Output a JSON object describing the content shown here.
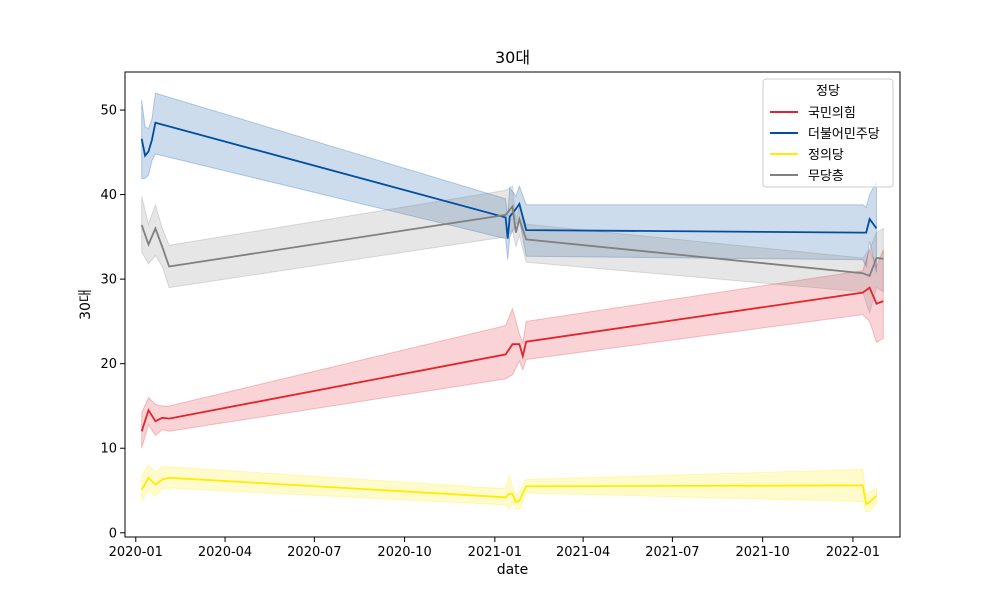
{
  "chart_data": {
    "type": "line",
    "title": "30대",
    "xlabel": "date",
    "ylabel": "30대",
    "x_dates": [
      "2020-01-07",
      "2020-01-14",
      "2020-01-21",
      "2020-01-28",
      "2020-02-04",
      "2021-01-12",
      "2021-01-19",
      "2021-01-26",
      "2021-02-02",
      "2022-01-11",
      "2022-01-18",
      "2022-01-25",
      "2022-02-01"
    ],
    "xlim": [
      "2019-12-21",
      "2022-02-18"
    ],
    "x_ticks": [
      "2020-01",
      "2020-04",
      "2020-07",
      "2020-10",
      "2021-01",
      "2021-04",
      "2021-07",
      "2021-10",
      "2022-01"
    ],
    "ylim": [
      -0.5,
      54.5
    ],
    "y_ticks": [
      0,
      10,
      20,
      30,
      40,
      50
    ],
    "legend": {
      "title": "정당",
      "position": "top-right"
    },
    "series": [
      {
        "name": "국민의힘",
        "color": "#e3242b",
        "values": [
          12.0,
          14.5,
          13.2,
          13.6,
          13.5,
          21.1,
          22.3,
          22.3,
          20.9,
          22.6,
          28.4,
          29.0,
          27.1,
          27.4
        ],
        "x_index": [
          0,
          1,
          2,
          3,
          4,
          5,
          6,
          7,
          7.5,
          8,
          9,
          10,
          11,
          12
        ],
        "band_upper": [
          14.2,
          16.0,
          15.2,
          15.0,
          15.0,
          24.5,
          26.5,
          23.5,
          22.5,
          25.0,
          31.0,
          33.5,
          31.5,
          33.5
        ],
        "band_lower": [
          10.0,
          12.8,
          11.5,
          12.2,
          12.0,
          18.2,
          18.7,
          20.3,
          19.3,
          20.5,
          25.8,
          25.0,
          22.5,
          23.0
        ]
      },
      {
        "name": "더불어민주당",
        "color": "#004ea2",
        "values": [
          46.6,
          44.6,
          45.1,
          46.5,
          48.5,
          37.3,
          34.8,
          37.4,
          38.3,
          38.9,
          35.8,
          35.5,
          35.5,
          37.1,
          36.0
        ],
        "x_index": [
          0,
          0.5,
          1,
          1.5,
          2,
          5,
          5.3,
          5.6,
          6.5,
          7,
          8,
          9,
          9.5,
          10,
          11
        ],
        "band_upper": [
          51.2,
          48.0,
          47.8,
          49.0,
          52.0,
          39.5,
          37.5,
          40.8,
          39.8,
          41.0,
          38.8,
          38.8,
          38.5,
          40.0,
          41.5
        ],
        "band_lower": [
          41.9,
          41.9,
          42.3,
          44.0,
          44.8,
          34.8,
          32.3,
          35.0,
          36.5,
          37.0,
          32.7,
          32.3,
          31.5,
          34.5,
          30.8
        ]
      },
      {
        "name": "정의당",
        "color": "#ffed00",
        "values": [
          5.1,
          6.5,
          5.7,
          6.3,
          6.5,
          4.2,
          4.6,
          4.6,
          3.6,
          3.8,
          5.5,
          5.6,
          3.4,
          3.6,
          4.4
        ],
        "x_index": [
          0,
          1,
          2,
          3,
          4,
          5,
          5.5,
          6,
          6.5,
          7,
          8,
          9,
          9.5,
          10,
          11
        ],
        "band_upper": [
          6.8,
          8.0,
          7.2,
          7.8,
          7.8,
          5.2,
          6.8,
          5.5,
          4.5,
          4.8,
          6.3,
          7.5,
          4.5,
          4.8,
          5.3
        ],
        "band_lower": [
          3.8,
          5.0,
          4.3,
          5.2,
          5.3,
          3.3,
          2.8,
          3.7,
          2.8,
          2.8,
          4.7,
          3.7,
          2.5,
          2.5,
          3.5
        ]
      },
      {
        "name": "무당층",
        "color": "#808080",
        "values": [
          36.4,
          34.1,
          36.0,
          33.8,
          31.5,
          37.6,
          38.6,
          35.5,
          37.1,
          34.7,
          30.7,
          30.4,
          32.5,
          32.4
        ],
        "x_index": [
          0,
          1,
          2,
          3,
          4,
          5,
          6,
          6.5,
          7,
          8,
          9,
          10,
          11,
          12
        ],
        "band_upper": [
          39.8,
          36.5,
          38.8,
          36.0,
          34.0,
          40.5,
          41.0,
          37.0,
          38.5,
          36.5,
          32.5,
          33.5,
          35.5,
          36.0
        ],
        "band_lower": [
          33.2,
          31.8,
          32.8,
          31.5,
          29.0,
          35.0,
          35.8,
          33.8,
          35.2,
          32.0,
          28.5,
          26.0,
          29.0,
          28.5
        ]
      }
    ]
  }
}
